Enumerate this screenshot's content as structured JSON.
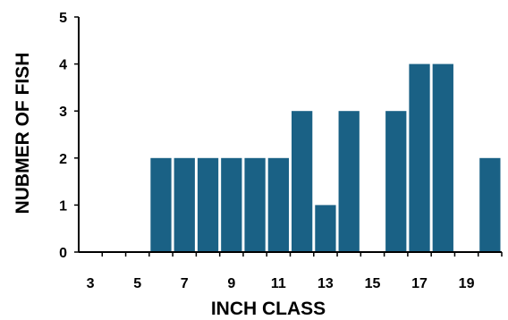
{
  "chart_data": {
    "type": "bar",
    "title": "",
    "xlabel": "INCH CLASS",
    "ylabel": "NUBMER OF FISH",
    "x_tick_labels": [
      "3",
      "5",
      "7",
      "9",
      "11",
      "13",
      "15",
      "17",
      "19"
    ],
    "y_tick_labels": [
      "0",
      "1",
      "2",
      "3",
      "4",
      "5"
    ],
    "ylim": [
      0,
      5
    ],
    "categories": [
      "3",
      "4",
      "5",
      "6",
      "7",
      "8",
      "9",
      "10",
      "11",
      "12",
      "13",
      "14",
      "15",
      "16",
      "17",
      "18",
      "19",
      "20"
    ],
    "values": [
      0,
      0,
      0,
      2,
      2,
      2,
      2,
      2,
      2,
      3,
      1,
      3,
      0,
      3,
      4,
      4,
      0,
      2
    ],
    "grid": false,
    "colors": {
      "bar": "#1a6185",
      "axis": "#000000"
    }
  }
}
